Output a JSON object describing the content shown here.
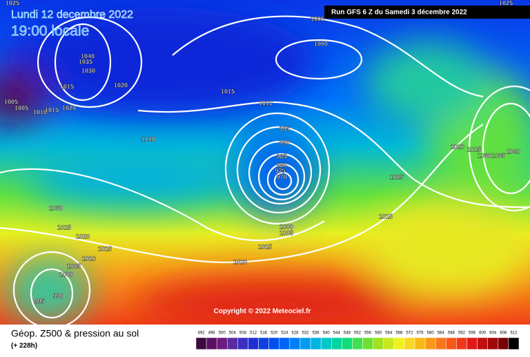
{
  "header": {
    "date": "Lundi 12 decembre 2022",
    "time": "19:00 locale",
    "run": "Run GFS 6 Z du Samedi 3 décembre 2022"
  },
  "copyright": "Copyright © 2022 Meteociel.fr",
  "footer": {
    "title": "Géop. Z500 & pression au sol",
    "lead": "(+ 228h)"
  },
  "isobar_labels": [
    1025,
    1025,
    1005,
    1000,
    1040,
    1035,
    1030,
    1020,
    1015,
    1015,
    1010,
    1005,
    1005,
    1010,
    1015,
    1020,
    1010,
    995,
    990,
    985,
    980,
    975,
    970,
    1020,
    1025,
    1030,
    1035,
    1040,
    1015,
    1030,
    1025,
    1020,
    1015,
    1010,
    1005,
    1000,
    990,
    995,
    1000,
    1005,
    1015,
    1015,
    1020
  ],
  "legend": {
    "values": [
      492,
      496,
      500,
      504,
      508,
      512,
      516,
      520,
      524,
      528,
      532,
      536,
      540,
      544,
      548,
      552,
      556,
      560,
      564,
      568,
      572,
      576,
      580,
      584,
      588,
      592,
      596,
      600,
      604,
      608,
      612
    ],
    "colors": [
      "#3c0a3c",
      "#5a1060",
      "#6e1a80",
      "#5a2aa0",
      "#3c2ec0",
      "#2030d0",
      "#1040e0",
      "#0050f0",
      "#0064f8",
      "#0080f8",
      "#009cf0",
      "#00b4e0",
      "#00c8c8",
      "#00d4a0",
      "#10dc78",
      "#40e050",
      "#70e030",
      "#a0e020",
      "#c8e820",
      "#f0f020",
      "#f8d820",
      "#f8b818",
      "#f89818",
      "#f87818",
      "#f85818",
      "#f03818",
      "#e01818",
      "#c01010",
      "#a00808",
      "#780404",
      "#000000"
    ]
  }
}
